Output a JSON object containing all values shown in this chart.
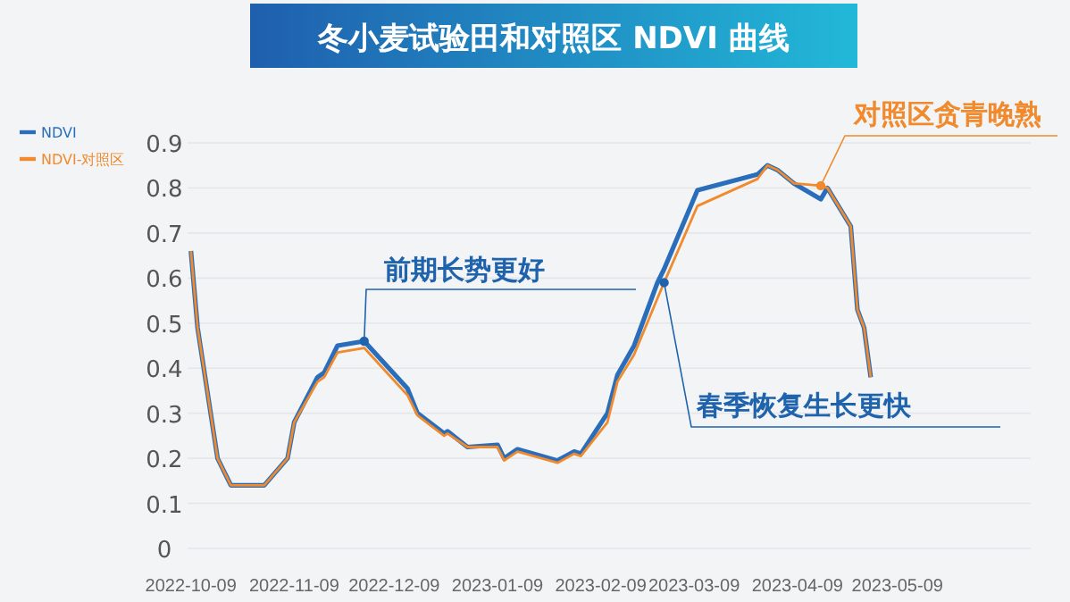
{
  "chart_data": {
    "type": "line",
    "title": "冬小麦试验田和对照区 NDVI 曲线",
    "x": [
      "2022-10-09",
      "2022-10-11",
      "2022-10-17",
      "2022-10-21",
      "2022-10-31",
      "2022-11-07",
      "2022-11-09",
      "2022-11-16",
      "2022-11-18",
      "2022-11-22",
      "2022-11-30",
      "2022-12-13",
      "2022-12-16",
      "2022-12-24",
      "2022-12-25",
      "2022-12-31",
      "2023-01-09",
      "2023-01-11",
      "2023-01-15",
      "2023-01-27",
      "2023-02-01",
      "2023-02-03",
      "2023-02-11",
      "2023-02-14",
      "2023-02-19",
      "2023-02-26",
      "2023-02-28",
      "2023-03-10",
      "2023-03-28",
      "2023-03-31",
      "2023-04-03",
      "2023-04-08",
      "2023-04-16",
      "2023-04-18",
      "2023-04-25",
      "2023-04-27",
      "2023-04-29",
      "2023-05-01"
    ],
    "series": [
      {
        "name": "NDVI",
        "color": "#2a6ebb",
        "values": [
          0.66,
          0.49,
          0.2,
          0.14,
          0.14,
          0.2,
          0.28,
          0.38,
          0.39,
          0.45,
          0.46,
          0.355,
          0.3,
          0.255,
          0.26,
          0.225,
          0.23,
          0.2,
          0.22,
          0.195,
          0.215,
          0.21,
          0.3,
          0.385,
          0.45,
          0.59,
          0.62,
          0.795,
          0.83,
          0.85,
          0.84,
          0.81,
          0.775,
          0.8,
          0.715,
          0.53,
          0.49,
          0.38
        ]
      },
      {
        "name": "NDVI-对照区",
        "color": "#f08a2c",
        "values": [
          0.66,
          0.49,
          0.2,
          0.14,
          0.14,
          0.2,
          0.28,
          0.37,
          0.38,
          0.435,
          0.445,
          0.34,
          0.295,
          0.25,
          0.255,
          0.225,
          0.225,
          0.195,
          0.215,
          0.19,
          0.21,
          0.205,
          0.28,
          0.37,
          0.43,
          0.555,
          0.59,
          0.76,
          0.82,
          0.85,
          0.84,
          0.81,
          0.805,
          0.8,
          0.715,
          0.53,
          0.49,
          0.38
        ]
      }
    ],
    "xlim": [
      "2022-10-08",
      "2023-06-18"
    ],
    "xticks": [
      "2022-10-09",
      "2022-11-09",
      "2022-12-09",
      "2023-01-09",
      "2023-02-09",
      "2023-03-09",
      "2023-04-09",
      "2023-05-09"
    ],
    "ylim": [
      0,
      0.9
    ],
    "yticks": [
      0,
      0.1,
      0.2,
      0.3,
      0.4,
      0.5,
      0.6,
      0.7,
      0.8,
      0.9
    ],
    "grid": "y",
    "legend": "top left",
    "annotations": [
      {
        "text": "前期长势更好",
        "x": "2022-11-30",
        "y": 0.46
      },
      {
        "text": "春季恢复生长更快",
        "x": "2023-02-28",
        "y": 0.59
      },
      {
        "text": "对照区贪青晚熟",
        "x": "2023-04-16",
        "y": 0.805
      }
    ]
  }
}
